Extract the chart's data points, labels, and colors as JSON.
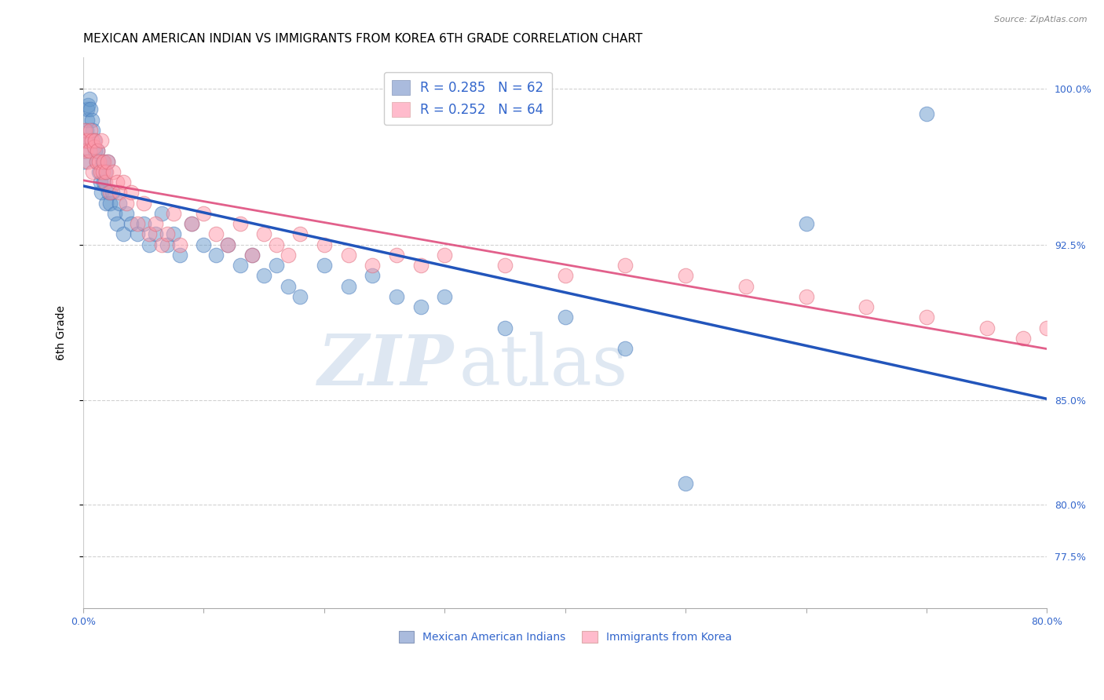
{
  "title": "MEXICAN AMERICAN INDIAN VS IMMIGRANTS FROM KOREA 6TH GRADE CORRELATION CHART",
  "source": "Source: ZipAtlas.com",
  "ylabel": "6th Grade",
  "xlim": [
    0.0,
    80.0
  ],
  "ylim": [
    75.0,
    101.5
  ],
  "yticks": [
    77.5,
    80.0,
    85.0,
    92.5,
    100.0
  ],
  "xticks": [
    0.0,
    10.0,
    20.0,
    30.0,
    40.0,
    50.0,
    60.0,
    70.0,
    80.0
  ],
  "series1_color": "#6699cc",
  "series1_edge": "#4477bb",
  "series2_color": "#ff99aa",
  "series2_edge": "#dd6677",
  "series1_label": "Mexican American Indians",
  "series2_label": "Immigrants from Korea",
  "R1": 0.285,
  "N1": 62,
  "R2": 0.252,
  "N2": 64,
  "line1_color": "#2255bb",
  "line2_color": "#dd4477",
  "watermark_zip": "ZIP",
  "watermark_atlas": "atlas",
  "background_color": "#ffffff",
  "grid_color": "#cccccc",
  "title_fontsize": 11,
  "axis_label_fontsize": 10,
  "tick_fontsize": 9,
  "legend_fontsize": 12,
  "blue_tick_color": "#3366cc",
  "series1_x": [
    0.1,
    0.15,
    0.2,
    0.25,
    0.3,
    0.35,
    0.4,
    0.5,
    0.6,
    0.7,
    0.8,
    0.9,
    1.0,
    1.1,
    1.2,
    1.3,
    1.4,
    1.5,
    1.6,
    1.7,
    1.8,
    1.9,
    2.0,
    2.1,
    2.2,
    2.4,
    2.6,
    2.8,
    3.0,
    3.3,
    3.6,
    4.0,
    4.5,
    5.0,
    5.5,
    6.0,
    6.5,
    7.0,
    7.5,
    8.0,
    9.0,
    10.0,
    11.0,
    12.0,
    13.0,
    14.0,
    15.0,
    16.0,
    17.0,
    18.0,
    20.0,
    22.0,
    24.0,
    26.0,
    28.0,
    30.0,
    35.0,
    40.0,
    45.0,
    50.0,
    60.0,
    70.0
  ],
  "series1_y": [
    96.5,
    97.0,
    97.5,
    98.0,
    98.5,
    99.0,
    99.2,
    99.5,
    99.0,
    98.5,
    98.0,
    97.5,
    97.0,
    96.5,
    97.0,
    96.0,
    95.5,
    95.0,
    96.5,
    95.5,
    96.0,
    94.5,
    96.5,
    95.0,
    94.5,
    95.0,
    94.0,
    93.5,
    94.5,
    93.0,
    94.0,
    93.5,
    93.0,
    93.5,
    92.5,
    93.0,
    94.0,
    92.5,
    93.0,
    92.0,
    93.5,
    92.5,
    92.0,
    92.5,
    91.5,
    92.0,
    91.0,
    91.5,
    90.5,
    90.0,
    91.5,
    90.5,
    91.0,
    90.0,
    89.5,
    90.0,
    88.5,
    89.0,
    87.5,
    81.0,
    93.5,
    98.8
  ],
  "series2_x": [
    0.1,
    0.15,
    0.2,
    0.3,
    0.4,
    0.5,
    0.6,
    0.7,
    0.8,
    0.9,
    1.0,
    1.1,
    1.2,
    1.3,
    1.4,
    1.5,
    1.6,
    1.7,
    1.8,
    1.9,
    2.0,
    2.2,
    2.5,
    2.8,
    3.0,
    3.3,
    3.6,
    4.0,
    4.5,
    5.0,
    5.5,
    6.0,
    6.5,
    7.0,
    7.5,
    8.0,
    9.0,
    10.0,
    11.0,
    12.0,
    13.0,
    14.0,
    15.0,
    16.0,
    17.0,
    18.0,
    20.0,
    22.0,
    24.0,
    26.0,
    28.0,
    30.0,
    35.0,
    40.0,
    45.0,
    50.0,
    55.0,
    60.0,
    65.0,
    70.0,
    75.0,
    78.0,
    80.0,
    82.0
  ],
  "series2_y": [
    97.5,
    98.0,
    97.0,
    97.5,
    96.5,
    97.0,
    98.0,
    97.5,
    96.0,
    97.2,
    97.5,
    96.5,
    97.0,
    96.5,
    96.0,
    97.5,
    96.0,
    96.5,
    95.5,
    96.0,
    96.5,
    95.0,
    96.0,
    95.5,
    95.0,
    95.5,
    94.5,
    95.0,
    93.5,
    94.5,
    93.0,
    93.5,
    92.5,
    93.0,
    94.0,
    92.5,
    93.5,
    94.0,
    93.0,
    92.5,
    93.5,
    92.0,
    93.0,
    92.5,
    92.0,
    93.0,
    92.5,
    92.0,
    91.5,
    92.0,
    91.5,
    92.0,
    91.5,
    91.0,
    91.5,
    91.0,
    90.5,
    90.0,
    89.5,
    89.0,
    88.5,
    88.0,
    88.5,
    89.0
  ]
}
